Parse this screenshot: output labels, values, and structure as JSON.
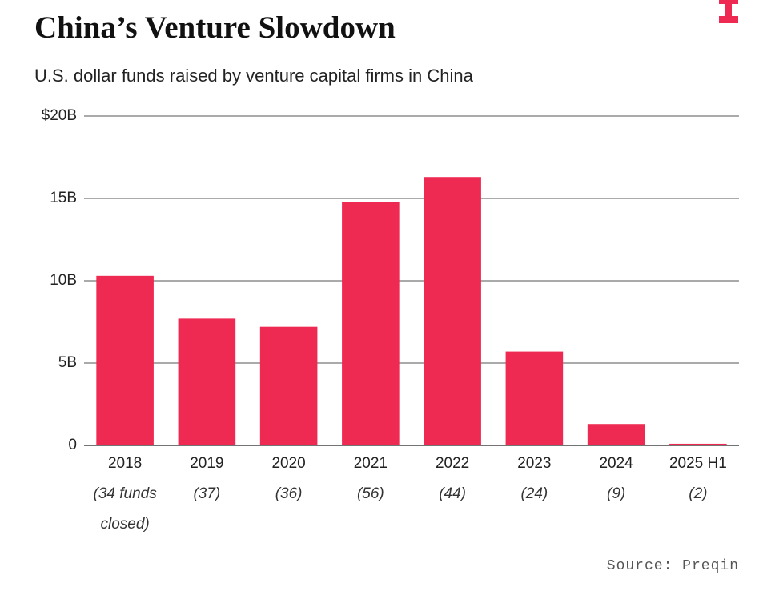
{
  "chart_data": {
    "type": "bar",
    "title": "China’s Venture Slowdown",
    "subtitle": "U.S. dollar funds raised by venture capital firms in China",
    "categories": [
      "2018",
      "2019",
      "2020",
      "2021",
      "2022",
      "2023",
      "2024",
      "2025 H1"
    ],
    "category_notes": [
      "(34 funds closed)",
      "(37)",
      "(36)",
      "(56)",
      "(44)",
      "(24)",
      "(9)",
      "(2)"
    ],
    "values": [
      10.3,
      7.7,
      7.2,
      14.8,
      16.3,
      5.7,
      1.3,
      0.1
    ],
    "color": "#ef2a52",
    "ylim": [
      0,
      20
    ],
    "yticks": [
      0,
      {
        "value": 5,
        "label": "5B"
      },
      {
        "value": 10,
        "label": "10B"
      },
      {
        "value": 15,
        "label": "15B"
      },
      {
        "value": 20,
        "label": "$20B"
      }
    ],
    "grid": true,
    "source": "Source: Preqin"
  }
}
